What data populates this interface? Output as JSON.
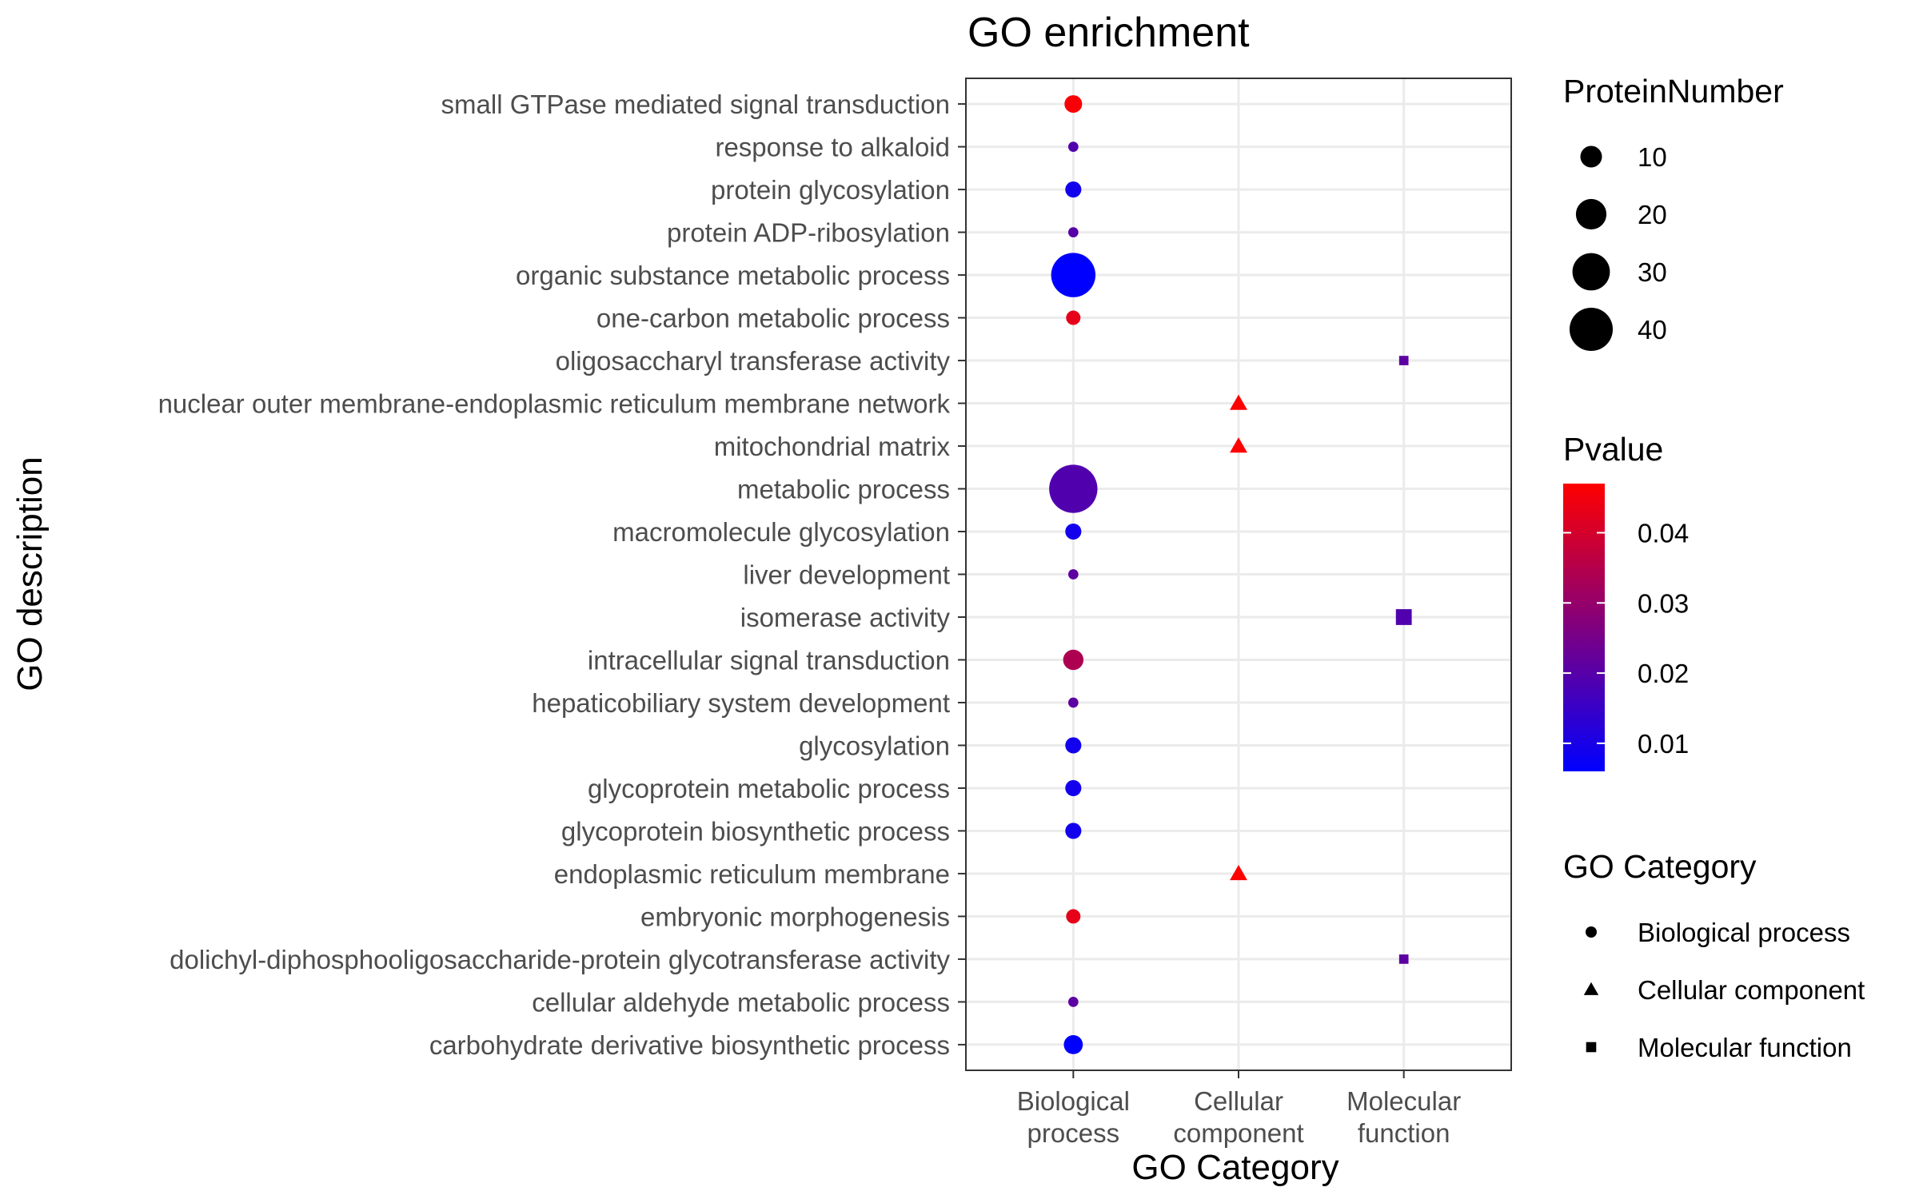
{
  "chart_data": {
    "type": "scatter",
    "title": "GO enrichment",
    "xlabel": "GO Category",
    "ylabel": "GO description",
    "grid": true,
    "categories": [
      "Biological\nprocess",
      "Cellular\ncomponent",
      "Molecular\nfunction"
    ],
    "terms": [
      "small GTPase mediated signal transduction",
      "response to alkaloid",
      "protein glycosylation",
      "protein ADP-ribosylation",
      "organic substance metabolic process",
      "one-carbon metabolic process",
      "oligosaccharyl transferase activity",
      "nuclear outer membrane-endoplasmic reticulum membrane network",
      "mitochondrial matrix",
      "metabolic process",
      "macromolecule glycosylation",
      "liver development",
      "isomerase activity",
      "intracellular signal transduction",
      "hepaticobiliary system development",
      "glycosylation",
      "glycoprotein metabolic process",
      "glycoprotein biosynthetic process",
      "endoplasmic reticulum membrane",
      "embryonic morphogenesis",
      "dolichyl-diphosphooligosaccharide-protein glycotransferase activity",
      "cellular aldehyde metabolic process",
      "carbohydrate derivative biosynthetic process"
    ],
    "points": [
      {
        "term": "small GTPase mediated signal transduction",
        "category": 0,
        "protein_number": 6,
        "pvalue": 0.046
      },
      {
        "term": "response to alkaloid",
        "category": 0,
        "protein_number": 2,
        "pvalue": 0.019
      },
      {
        "term": "protein glycosylation",
        "category": 0,
        "protein_number": 5,
        "pvalue": 0.009
      },
      {
        "term": "protein ADP-ribosylation",
        "category": 0,
        "protein_number": 2,
        "pvalue": 0.02
      },
      {
        "term": "organic substance metabolic process",
        "category": 0,
        "protein_number": 38,
        "pvalue": 0.006
      },
      {
        "term": "one-carbon metabolic process",
        "category": 0,
        "protein_number": 4,
        "pvalue": 0.043
      },
      {
        "term": "oligosaccharyl transferase activity",
        "category": 2,
        "protein_number": 2,
        "pvalue": 0.021
      },
      {
        "term": "nuclear outer membrane-endoplasmic reticulum membrane network",
        "category": 1,
        "protein_number": 5,
        "pvalue": 0.047
      },
      {
        "term": "mitochondrial matrix",
        "category": 1,
        "protein_number": 5,
        "pvalue": 0.047
      },
      {
        "term": "metabolic process",
        "category": 0,
        "protein_number": 45,
        "pvalue": 0.019
      },
      {
        "term": "macromolecule glycosylation",
        "category": 0,
        "protein_number": 5,
        "pvalue": 0.009
      },
      {
        "term": "liver development",
        "category": 0,
        "protein_number": 2,
        "pvalue": 0.021
      },
      {
        "term": "isomerase activity",
        "category": 2,
        "protein_number": 6,
        "pvalue": 0.019
      },
      {
        "term": "intracellular signal transduction",
        "category": 0,
        "protein_number": 8,
        "pvalue": 0.034
      },
      {
        "term": "hepaticobiliary system development",
        "category": 0,
        "protein_number": 2,
        "pvalue": 0.021
      },
      {
        "term": "glycosylation",
        "category": 0,
        "protein_number": 5,
        "pvalue": 0.009
      },
      {
        "term": "glycoprotein metabolic process",
        "category": 0,
        "protein_number": 5,
        "pvalue": 0.009
      },
      {
        "term": "glycoprotein biosynthetic process",
        "category": 0,
        "protein_number": 5,
        "pvalue": 0.009
      },
      {
        "term": "endoplasmic reticulum membrane",
        "category": 1,
        "protein_number": 5,
        "pvalue": 0.047
      },
      {
        "term": "embryonic morphogenesis",
        "category": 0,
        "protein_number": 4,
        "pvalue": 0.043
      },
      {
        "term": "dolichyl-diphosphooligosaccharide-protein glycotransferase activity",
        "category": 2,
        "protein_number": 2,
        "pvalue": 0.021
      },
      {
        "term": "cellular aldehyde metabolic process",
        "category": 0,
        "protein_number": 2,
        "pvalue": 0.021
      },
      {
        "term": "carbohydrate derivative biosynthetic process",
        "category": 0,
        "protein_number": 7,
        "pvalue": 0.006
      }
    ],
    "size_legend": {
      "title": "ProteinNumber",
      "breaks": [
        10,
        20,
        30,
        40
      ],
      "labels": [
        "10",
        "20",
        "30",
        "40"
      ]
    },
    "color_legend": {
      "title": "Pvalue",
      "low": 0.006,
      "high": 0.047,
      "low_color": "#0000FF",
      "high_color": "#FF0000",
      "breaks": [
        0.04,
        0.03,
        0.02,
        0.01
      ],
      "labels": [
        "0.04",
        "0.03",
        "0.02",
        "0.01"
      ]
    },
    "shape_legend": {
      "title": "GO Category",
      "items": [
        {
          "label": "Biological process",
          "shape": "circle"
        },
        {
          "label": "Cellular component",
          "shape": "triangle"
        },
        {
          "label": "Molecular function",
          "shape": "square"
        }
      ]
    },
    "colors": {
      "text": "#000000",
      "tick_text": "#4D4D4D",
      "grid": "#EBEBEB",
      "border": "#333333"
    }
  }
}
